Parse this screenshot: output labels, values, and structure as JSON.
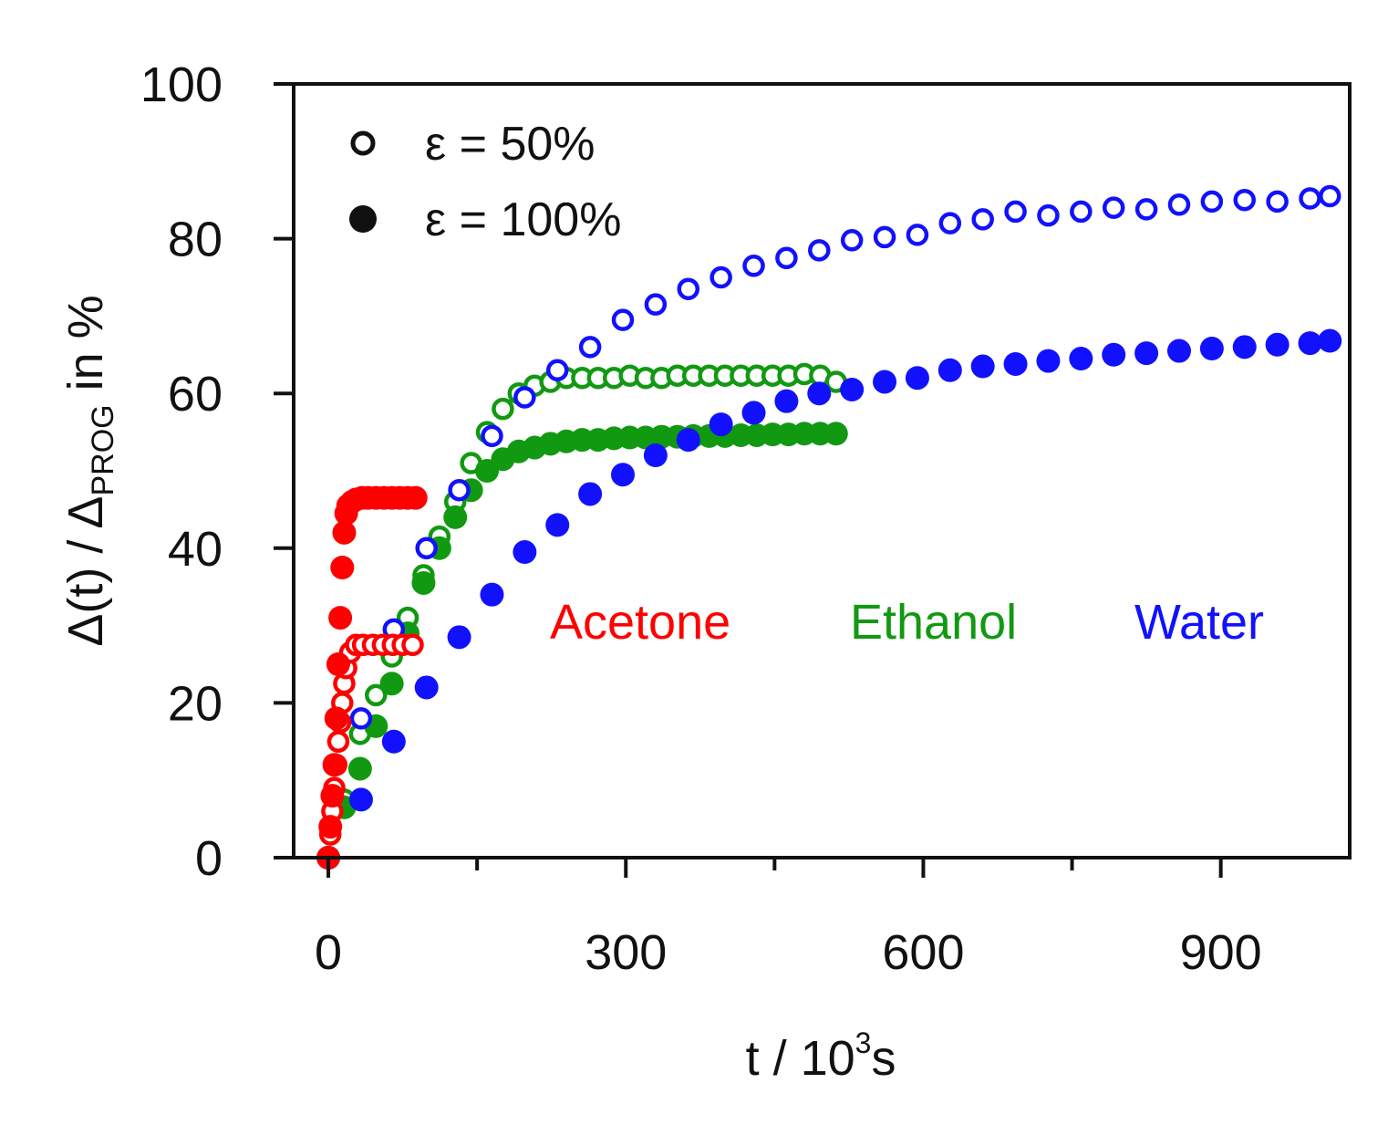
{
  "chart_data": {
    "type": "scatter",
    "title": "",
    "xlabel": {
      "main": "t / 10",
      "sup": "3",
      "tail": "s"
    },
    "ylabel": {
      "pre": "Δ(t) / Δ",
      "sub": "PROG",
      "post": " in %"
    },
    "xlim": [
      -35,
      1030
    ],
    "ylim": [
      0,
      100
    ],
    "xticks_major": [
      0,
      300,
      600,
      900
    ],
    "xtick_labels": [
      "0",
      "300",
      "600",
      "900"
    ],
    "xticks_minor": [
      150,
      450,
      750,
      1050
    ],
    "yticks": [
      0,
      20,
      40,
      60,
      80,
      100
    ],
    "ytick_labels": [
      "0",
      "20",
      "40",
      "60",
      "80",
      "100"
    ],
    "grid": false,
    "legend_position": "top-left",
    "legend": [
      {
        "label": "ε = 50%",
        "marker": "open-circle"
      },
      {
        "label": "ε = 100%",
        "marker": "filled-circle"
      }
    ],
    "annotations": [
      {
        "text": "Acetone",
        "color": "#ff0000"
      },
      {
        "text": "Ethanol",
        "color": "#119911"
      },
      {
        "text": "Water",
        "color": "#1111ff"
      }
    ],
    "series": [
      {
        "name": "Water ε = 50%",
        "solvent": "Water",
        "strain": "50%",
        "marker": "open",
        "color": "#1111ff",
        "x": [
          0,
          33,
          66,
          99,
          132,
          165,
          198,
          231,
          264,
          297,
          330,
          363,
          396,
          429,
          462,
          495,
          528,
          561,
          594,
          627,
          660,
          693,
          726,
          759,
          792,
          825,
          858,
          891,
          924,
          957,
          990,
          1010
        ],
        "y": [
          0,
          18,
          29.5,
          40,
          47.5,
          54.5,
          59.5,
          63,
          66,
          69.5,
          71.5,
          73.5,
          75,
          76.5,
          77.5,
          78.5,
          79.8,
          80.2,
          80.5,
          82,
          82.5,
          83.5,
          83,
          83.5,
          84,
          83.8,
          84.4,
          84.8,
          85,
          84.8,
          85.2,
          85.5
        ]
      },
      {
        "name": "Water ε = 100%",
        "solvent": "Water",
        "strain": "100%",
        "marker": "filled",
        "color": "#1111ff",
        "x": [
          0,
          33,
          66,
          99,
          132,
          165,
          198,
          231,
          264,
          297,
          330,
          363,
          396,
          429,
          462,
          495,
          528,
          561,
          594,
          627,
          660,
          693,
          726,
          759,
          792,
          825,
          858,
          891,
          924,
          957,
          990,
          1010
        ],
        "y": [
          0,
          7.5,
          15,
          22,
          28.5,
          34,
          39.5,
          43,
          47,
          49.5,
          52,
          54,
          56,
          57.5,
          59,
          60,
          60.5,
          61.5,
          62,
          63,
          63.5,
          63.8,
          64.2,
          64.5,
          65,
          65.2,
          65.5,
          65.8,
          66,
          66.3,
          66.5,
          66.8
        ]
      },
      {
        "name": "Ethanol ε = 50%",
        "solvent": "Ethanol",
        "strain": "50%",
        "marker": "open",
        "color": "#119911",
        "x": [
          0,
          16,
          32,
          48,
          64,
          80,
          96,
          112,
          128,
          144,
          160,
          176,
          192,
          208,
          224,
          240,
          256,
          272,
          288,
          304,
          320,
          336,
          352,
          368,
          384,
          400,
          416,
          432,
          448,
          464,
          480,
          496,
          512
        ],
        "y": [
          0,
          7.5,
          16,
          21,
          26,
          31,
          36.5,
          41.5,
          46,
          51,
          55,
          58,
          60,
          61,
          61.5,
          62,
          62,
          62,
          62,
          62.3,
          62,
          62,
          62.3,
          62.3,
          62.3,
          62.3,
          62.3,
          62.3,
          62.3,
          62.3,
          62.5,
          62.3,
          61.5
        ]
      },
      {
        "name": "Ethanol ε = 100%",
        "solvent": "Ethanol",
        "strain": "100%",
        "marker": "filled",
        "color": "#119911",
        "x": [
          0,
          16,
          32,
          48,
          64,
          80,
          96,
          112,
          128,
          144,
          160,
          176,
          192,
          208,
          224,
          240,
          256,
          272,
          288,
          304,
          320,
          336,
          352,
          368,
          384,
          400,
          416,
          432,
          448,
          464,
          480,
          496,
          512
        ],
        "y": [
          0,
          6.5,
          11.5,
          17,
          22.5,
          29,
          35.5,
          40,
          44,
          47.5,
          50,
          51.5,
          52.5,
          53,
          53.5,
          53.8,
          54,
          54,
          54.2,
          54.3,
          54.3,
          54.4,
          54.4,
          54.5,
          54.5,
          54.5,
          54.6,
          54.6,
          54.7,
          54.7,
          54.8,
          54.8,
          54.8
        ]
      },
      {
        "name": "Acetone ε = 50%",
        "solvent": "Acetone",
        "strain": "50%",
        "marker": "open",
        "color": "#ff0000",
        "x": [
          0,
          2,
          4,
          6,
          8,
          10,
          12,
          14,
          16,
          18,
          22,
          28,
          35,
          45,
          55,
          65,
          75,
          85
        ],
        "y": [
          0,
          3,
          6,
          9,
          12,
          15,
          17.5,
          20,
          22.5,
          24.5,
          26.5,
          27.5,
          27.5,
          27.5,
          27.5,
          27.5,
          27.5,
          27.5
        ]
      },
      {
        "name": "Acetone ε = 100%",
        "solvent": "Acetone",
        "strain": "100%",
        "marker": "filled",
        "color": "#ff0000",
        "x": [
          0,
          2,
          4,
          6,
          8,
          10,
          12,
          14,
          16,
          18,
          20,
          24,
          28,
          34,
          40,
          48,
          56,
          64,
          72,
          80,
          88
        ],
        "y": [
          0,
          4,
          8,
          12,
          18,
          25,
          31,
          37.5,
          42,
          44.5,
          45.5,
          46,
          46.3,
          46.5,
          46.5,
          46.5,
          46.5,
          46.5,
          46.5,
          46.5,
          46.5
        ]
      }
    ]
  }
}
